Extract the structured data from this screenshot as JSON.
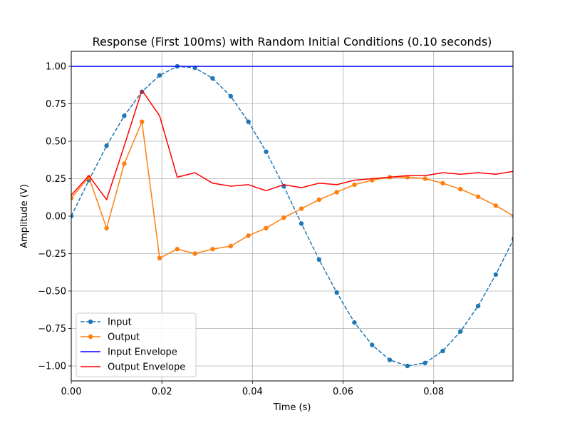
{
  "chart_data": {
    "type": "line",
    "title": "Response (First 100ms) with Random Initial Conditions (0.10 seconds)",
    "xlabel": "Time (s)",
    "ylabel": "Amplitude (V)",
    "xlim": [
      0.0,
      0.0975
    ],
    "ylim": [
      -1.1,
      1.1
    ],
    "xticks": [
      0.0,
      0.02,
      0.04,
      0.06,
      0.08
    ],
    "xtick_labels": [
      "0.00",
      "0.02",
      "0.04",
      "0.06",
      "0.08"
    ],
    "yticks": [
      -1.0,
      -0.75,
      -0.5,
      -0.25,
      0.0,
      0.25,
      0.5,
      0.75,
      1.0
    ],
    "ytick_labels": [
      "−1.00",
      "−0.75",
      "−0.50",
      "−0.25",
      "0.00",
      "0.25",
      "0.50",
      "0.75",
      "1.00"
    ],
    "grid": true,
    "legend_position": "lower-left",
    "x": [
      0.0,
      0.0039,
      0.0078,
      0.0117,
      0.0156,
      0.0195,
      0.0234,
      0.0273,
      0.0312,
      0.0352,
      0.0391,
      0.043,
      0.0469,
      0.0508,
      0.0547,
      0.0586,
      0.0625,
      0.0664,
      0.0703,
      0.0742,
      0.0781,
      0.082,
      0.0859,
      0.0898,
      0.0937,
      0.0977
    ],
    "series": [
      {
        "name": "Input",
        "color": "#1f77b4",
        "style": "dashed-markers",
        "values": [
          0.0,
          0.24,
          0.47,
          0.67,
          0.83,
          0.94,
          1.0,
          0.99,
          0.92,
          0.8,
          0.63,
          0.43,
          0.2,
          -0.05,
          -0.29,
          -0.51,
          -0.71,
          -0.86,
          -0.96,
          -1.0,
          -0.98,
          -0.9,
          -0.77,
          -0.6,
          -0.39,
          -0.15
        ]
      },
      {
        "name": "Output",
        "color": "#ff7f0e",
        "style": "solid-markers",
        "values": [
          0.12,
          0.26,
          -0.08,
          0.35,
          0.63,
          -0.28,
          -0.22,
          -0.25,
          -0.22,
          -0.2,
          -0.13,
          -0.08,
          -0.01,
          0.05,
          0.11,
          0.16,
          0.21,
          0.24,
          0.26,
          0.26,
          0.25,
          0.22,
          0.18,
          0.13,
          0.07,
          0.0
        ]
      },
      {
        "name": "Input Envelope",
        "color": "#0000ff",
        "style": "solid",
        "values": [
          1.0,
          1.0,
          1.0,
          1.0,
          1.0,
          1.0,
          1.0,
          1.0,
          1.0,
          1.0,
          1.0,
          1.0,
          1.0,
          1.0,
          1.0,
          1.0,
          1.0,
          1.0,
          1.0,
          1.0,
          1.0,
          1.0,
          1.0,
          1.0,
          1.0,
          1.0
        ]
      },
      {
        "name": "Output Envelope",
        "color": "#ff0000",
        "style": "solid",
        "values": [
          0.14,
          0.27,
          0.11,
          0.47,
          0.84,
          0.67,
          0.26,
          0.29,
          0.22,
          0.2,
          0.21,
          0.17,
          0.21,
          0.19,
          0.22,
          0.21,
          0.24,
          0.25,
          0.26,
          0.27,
          0.27,
          0.29,
          0.28,
          0.29,
          0.28,
          0.3
        ]
      }
    ]
  }
}
